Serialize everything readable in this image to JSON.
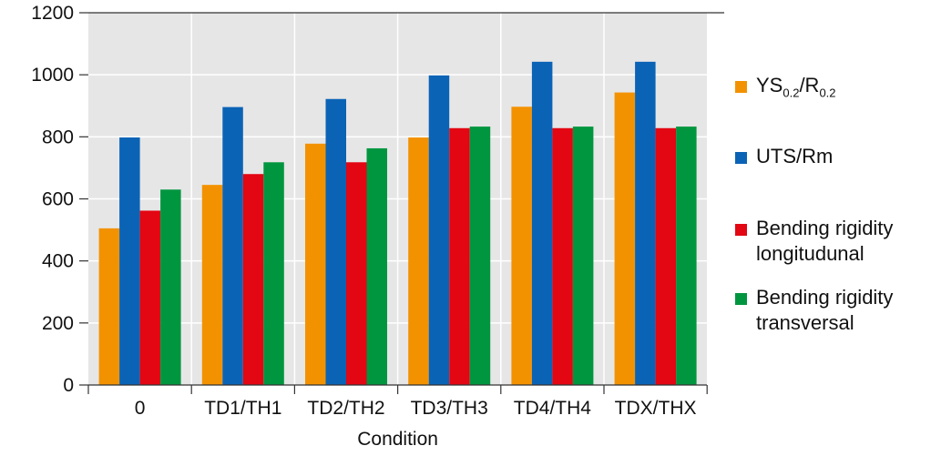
{
  "chart_data": {
    "type": "bar",
    "categories": [
      "0",
      "TD1/TH1",
      "TD2/TH2",
      "TD3/TH3",
      "TD4/TH4",
      "TDX/THX"
    ],
    "series": [
      {
        "name": "YS0.2/R0.2",
        "color": "#F39200",
        "values": [
          505,
          645,
          778,
          798,
          897,
          943
        ]
      },
      {
        "name": "UTS/Rm",
        "color": "#0B63B6",
        "values": [
          798,
          896,
          922,
          998,
          1042,
          1042
        ]
      },
      {
        "name": "Bending rigidity longitudunal",
        "color": "#E30613",
        "values": [
          562,
          680,
          718,
          828,
          828,
          828
        ]
      },
      {
        "name": "Bending rigidity transversal",
        "color": "#00963F",
        "values": [
          630,
          718,
          763,
          833,
          833,
          833
        ]
      }
    ],
    "xlabel": "Condition",
    "ylabel": "",
    "ylim": [
      0,
      1200
    ],
    "yticks": [
      0,
      200,
      400,
      600,
      800,
      1000,
      1200
    ],
    "grid": true,
    "legend_position": "right"
  },
  "legend": {
    "ys_main": "YS",
    "ys_sub1": "0.2",
    "ys_sep": "/R",
    "ys_sub2": "0.2",
    "uts": "UTS/Rm",
    "long_line1": "Bending rigidity",
    "long_line2": "longitudunal",
    "trans_line1": "Bending rigidity",
    "trans_line2": "transversal"
  },
  "colors": {
    "plot_background": "#e6e6e6",
    "gridline": "#ffffff",
    "axis": "#333333"
  }
}
